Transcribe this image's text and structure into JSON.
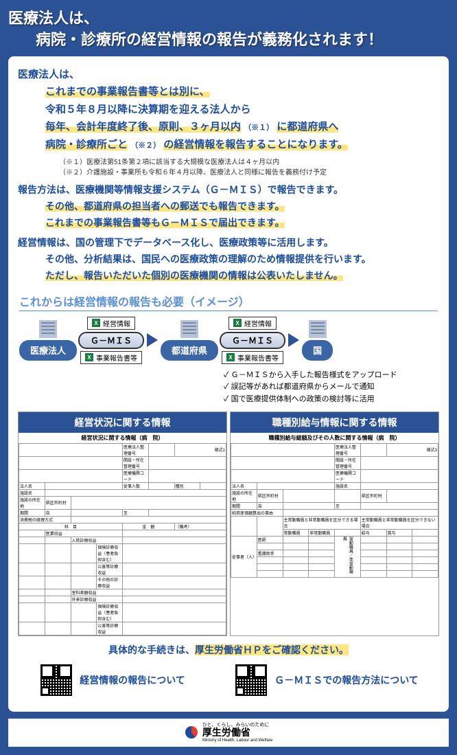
{
  "colors": {
    "page_bg": "#2b5294",
    "box_bg": "#ffffff",
    "accent_blue": "#1b4c9c",
    "highlight": "#ffe680",
    "soft_blue": "#5a8fd6",
    "entity_bg": "#3a66a8",
    "excel_green": "#1a7a42"
  },
  "header": {
    "line1": "医療法人は、",
    "line2": "病院・診療所の経営情報の報告が義務化されます！"
  },
  "intro": {
    "lead": "医療法人は、",
    "l1": "これまでの事業報告書等とは別に、",
    "l2": "令和５年８月以降に決算期を迎える法人から",
    "l3_a": "毎年、会計年度終了後、原則、３ヶ月以内",
    "l3_note_marker": "（※１）",
    "l3_b": "に都道府県へ",
    "l4_a": "病院・診療所ごと",
    "l4_note_marker": "（※２）",
    "l4_b": "の経営情報を報告することになります。"
  },
  "footnotes": {
    "n1": "（※１）医療法第51条第２項に該当する大規模な医療法人は４ヶ月以内",
    "n2": "（※２）介護施設・事業所も令和６年４月以降、医療法人と同様に報告を義務付け予定"
  },
  "method": {
    "title": "報告方法は、医療機関等情報支援システム（Ｇ－ＭＩＳ）で報告できます。",
    "m1": "その他、都道府県の担当者への郵送でも報告できます。",
    "m2": "これまでの事業報告書等もＧ－ＭＩＳで届出できます。"
  },
  "use": {
    "title": "経営情報は、国の管理下でデータベース化し、医療政策等に活用します。",
    "u1": "その他、分析結果は、国民への医療政策の理解のため情報提供を行います。",
    "u2": "ただし、報告いただいた個別の医療機関の情報は公表いたしません。"
  },
  "diagram": {
    "title": "これからは経営情報の報告も必要（イメージ）",
    "entity_corp": "医療法人",
    "entity_pref": "都道府県",
    "entity_nation": "国",
    "chip_mgmt": "経営情報",
    "chip_report": "事業報告書等",
    "gmis_label": "Ｇ－ＭＩＳ",
    "excel_marker": "X"
  },
  "checks": {
    "c1": "Ｇ－ＭＩＳから入手した報告様式をアップロード",
    "c2": "誤記等があれば都道府県からメールで通知",
    "c3": "国で医療提供体制への政策の検討等に活用"
  },
  "docs": {
    "left": {
      "title": "経営状況に関する情報",
      "subtitle": "経営状況に関する情報（病　院）",
      "fields": {
        "corp_no": "医療法人整理番号",
        "addr_no": "開設・所在管理番号",
        "fac_code": "医療機関コード",
        "corp_name": "法人名",
        "fac_name": "施設名",
        "addr": "施設の所在地",
        "city": "県区市町村",
        "period": "期間",
        "start": "自",
        "end": "至",
        "acct": "消費税の経理方式",
        "biz": "医業収益",
        "row1": "入院診療収益",
        "row2": "保険診療収益（患者負担含む）",
        "row3": "公害等診療収益",
        "row4": "その他の診療収益",
        "row5": "室料差額収益",
        "row6": "外来診療収益",
        "row7": "保険診療収益（患者負担含む）",
        "row8": "公害等診療収益",
        "col_subject": "科　目",
        "col_amount": "金　額",
        "col_staff": "従事人数",
        "col_type": "種別",
        "form_no": "様式1",
        "note_label": "（備考）"
      }
    },
    "right": {
      "title": "職種別給与情報に関する情報",
      "subtitle": "職種別給与総額及びその人数に関する情報（病　院）",
      "fields": {
        "corp_no": "医療法人整理番号",
        "addr_no": "開設・所在管理番号",
        "fac_code": "医療機関コード",
        "corp_name": "法人名",
        "fac_name": "施設名",
        "addr": "施設の所在地",
        "city": "県区市町村",
        "period": "期間",
        "start": "自",
        "end": "至",
        "basis": "純資産価額算出の事由",
        "form_no": "様式3",
        "section_staff": "従事者（人）",
        "hdr_a": "主常勤職員と非常勤職員を区分できる場合",
        "hdr_b": "主常勤職員と非常勤職員を区分できない場合",
        "sub1": "常勤職員",
        "sub2": "非常勤職員",
        "sub3": "給与",
        "sub4": "賞与",
        "rows_spacer": "常勤職員／非常勤職員",
        "row_doc": "医師",
        "row_nurse": "看護助手"
      }
    }
  },
  "footerlinks": {
    "lead": "具体的な手続きは、",
    "hp": "厚生労働省ＨＰをご確認ください。",
    "q1": "経営情報の報告について",
    "q2": "Ｇ－ＭＩＳでの報告方法について"
  },
  "ministry": {
    "tagline": "ひと、くらし、みらいのために",
    "jp": "厚生労働省",
    "en": "Ministry of Health, Labour and Welfare"
  }
}
